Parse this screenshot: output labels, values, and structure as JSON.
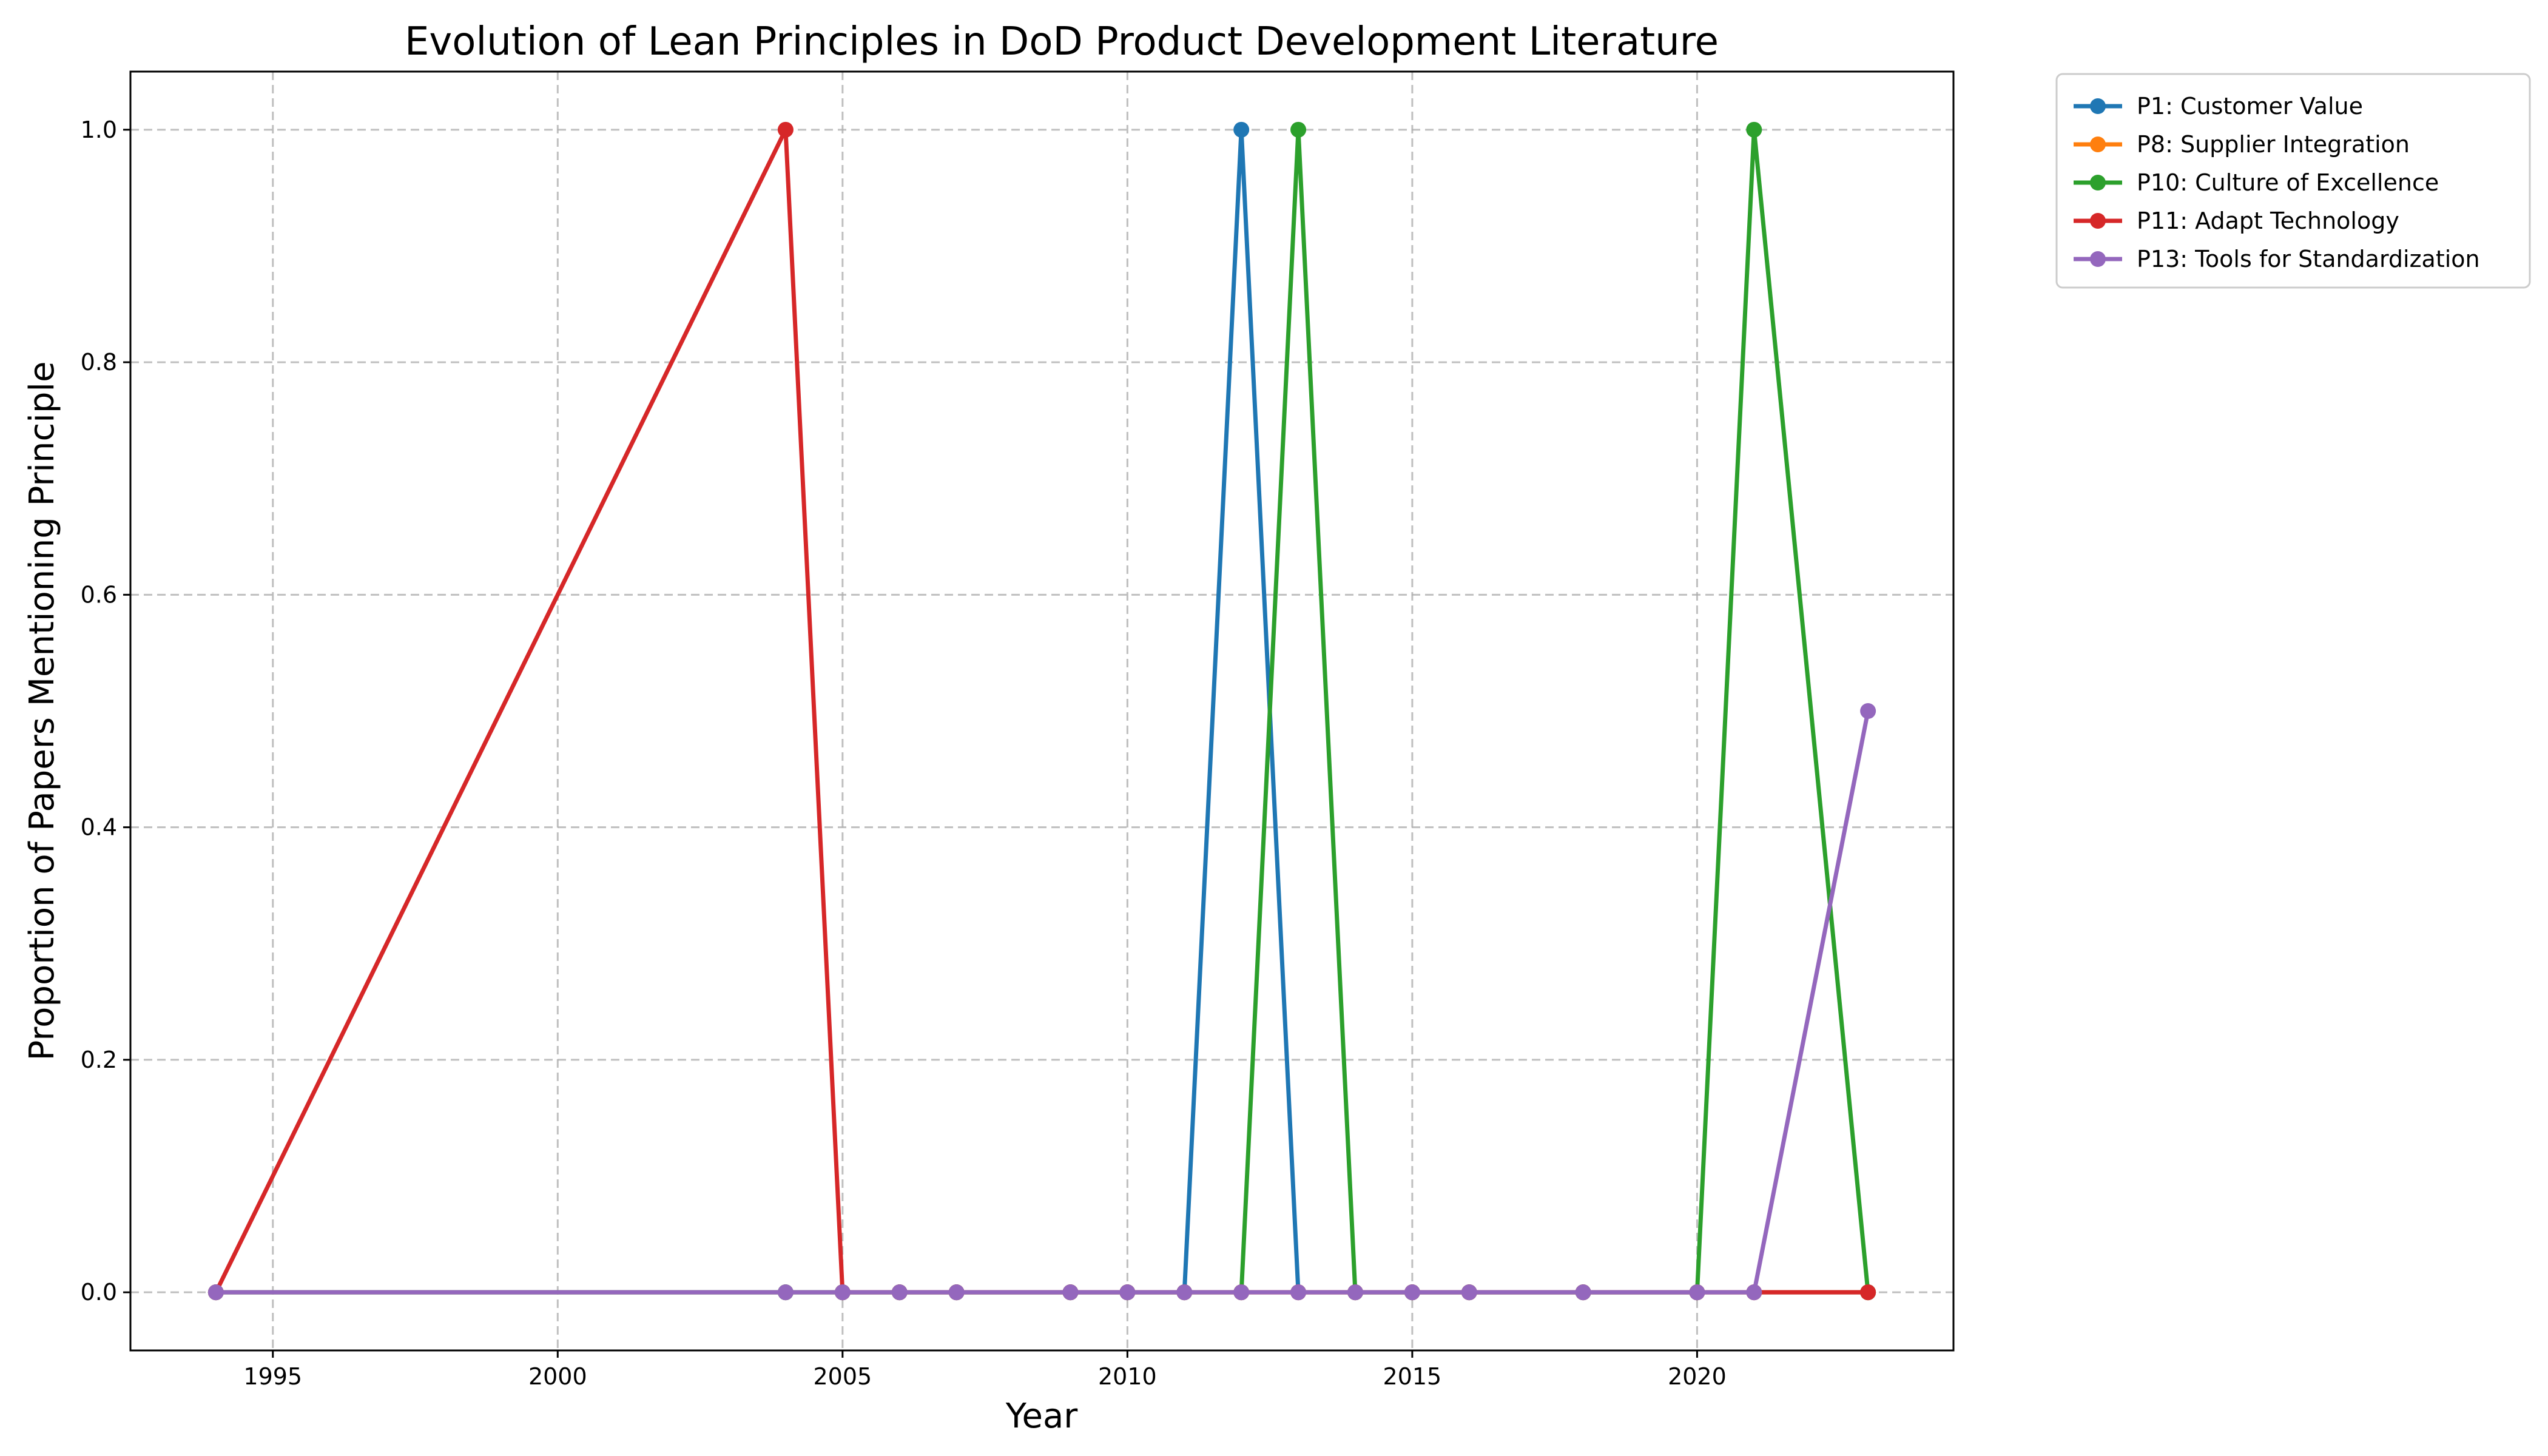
{
  "chart_data": {
    "type": "line",
    "title": "Evolution of Lean Principles in DoD Product Development Literature",
    "xlabel": "Year",
    "ylabel": "Proportion of Papers Mentioning Principle",
    "xlim": [
      1992.5,
      2024.5
    ],
    "ylim": [
      -0.05,
      1.05
    ],
    "xticks": [
      1995,
      2000,
      2005,
      2010,
      2015,
      2020
    ],
    "yticks": [
      "0.0",
      "0.2",
      "0.4",
      "0.6",
      "0.8",
      "1.0"
    ],
    "grid": true,
    "legend_position": "outside upper right",
    "x": [
      1994,
      2004,
      2005,
      2006,
      2007,
      2009,
      2010,
      2011,
      2012,
      2013,
      2014,
      2015,
      2016,
      2018,
      2020,
      2021,
      2023
    ],
    "series": [
      {
        "name": "P1: Customer Value",
        "color": "#1f77b4",
        "values": [
          0,
          0,
          0,
          0,
          0,
          0,
          0,
          0,
          1,
          0,
          0,
          0,
          0,
          0,
          0,
          0,
          0
        ]
      },
      {
        "name": "P8: Supplier Integration",
        "color": "#ff7f0e",
        "values": [
          0,
          0,
          0,
          0,
          0,
          0,
          0,
          0,
          0,
          0,
          0,
          0,
          0,
          0,
          0,
          0,
          0
        ]
      },
      {
        "name": "P10: Culture of Excellence",
        "color": "#2ca02c",
        "values": [
          0,
          0,
          0,
          0,
          0,
          0,
          0,
          0,
          0,
          1,
          0,
          0,
          0,
          0,
          0,
          1,
          0
        ]
      },
      {
        "name": "P11: Adapt Technology",
        "color": "#d62728",
        "values": [
          0,
          1,
          0,
          0,
          0,
          0,
          0,
          0,
          0,
          0,
          0,
          0,
          0,
          0,
          0,
          0,
          0
        ]
      },
      {
        "name": "P13: Tools for Standardization",
        "color": "#9467bd",
        "values": [
          0,
          0,
          0,
          0,
          0,
          0,
          0,
          0,
          0,
          0,
          0,
          0,
          0,
          0,
          0,
          0,
          0.5
        ]
      }
    ]
  }
}
